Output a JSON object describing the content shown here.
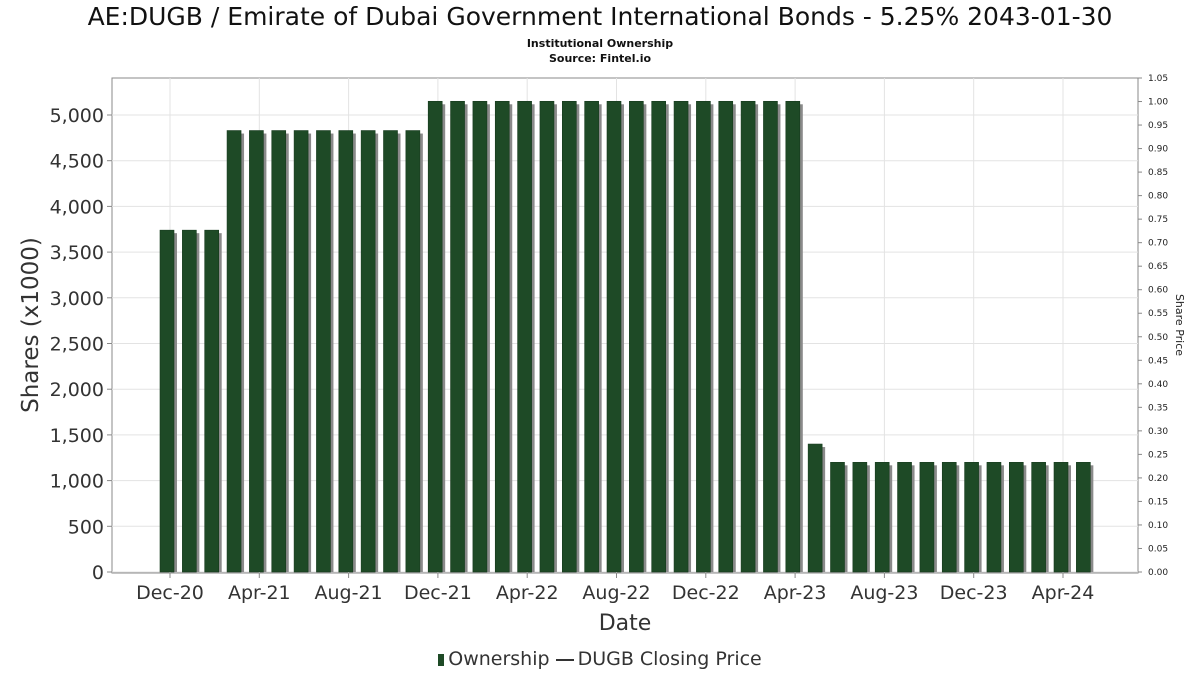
{
  "title": "AE:DUGB / Emirate of Dubai Government International Bonds - 5.25% 2043-01-30",
  "subtitle": [
    "Institutional Ownership",
    "Source: Fintel.io"
  ],
  "colors": {
    "bar": "#1e4a26",
    "bar_shadow": "#8a8a8a",
    "grid": "#e3e3e3",
    "axis": "#888888"
  },
  "chart_data": {
    "type": "bar",
    "xlabel": "Date",
    "ylabel": "Shares (x1000)",
    "y2label": "Share Price",
    "ylim": [
      0,
      5200
    ],
    "yticks": [
      0,
      500,
      1000,
      1500,
      2000,
      2500,
      3000,
      3500,
      4000,
      4500,
      5000
    ],
    "y2lim": [
      0,
      1.05
    ],
    "y2ticks": [
      "0.00",
      "0.05",
      "0.10",
      "0.15",
      "0.20",
      "0.25",
      "0.30",
      "0.35",
      "0.40",
      "0.45",
      "0.50",
      "0.55",
      "0.60",
      "0.65",
      "0.70",
      "0.75",
      "0.80",
      "0.85",
      "0.90",
      "0.95",
      "1.00",
      "1.05"
    ],
    "xticks": [
      "Dec-20",
      "Apr-21",
      "Aug-21",
      "Dec-21",
      "Apr-22",
      "Aug-22",
      "Dec-22",
      "Apr-23",
      "Aug-23",
      "Dec-23",
      "Apr-24"
    ],
    "series": [
      {
        "name": "Ownership",
        "values": [
          3740,
          3740,
          3740,
          4830,
          4830,
          4830,
          4830,
          4830,
          4830,
          4830,
          4830,
          4830,
          5150,
          5150,
          5150,
          5150,
          5150,
          5150,
          5150,
          5150,
          5150,
          5150,
          5150,
          5150,
          5150,
          5150,
          5150,
          5150,
          5150,
          1400,
          1200,
          1200,
          1200,
          1200,
          1200,
          1200,
          1200,
          1200,
          1200,
          1200,
          1200,
          1200
        ]
      },
      {
        "name": "DUGB Closing Price",
        "values": []
      }
    ],
    "legend": [
      "Ownership",
      "DUGB Closing Price"
    ]
  }
}
